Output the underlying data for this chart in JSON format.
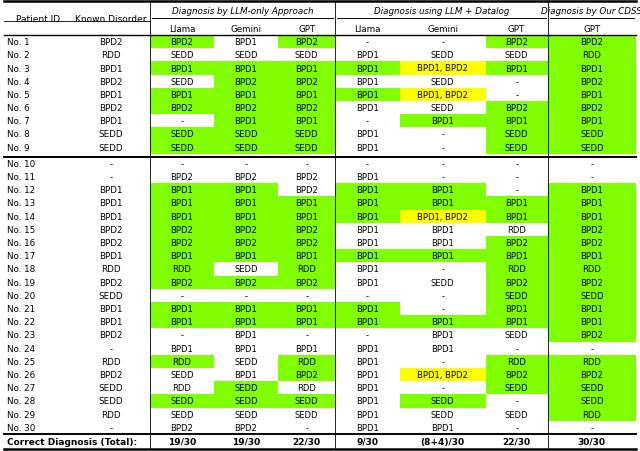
{
  "rows": [
    [
      "No. 1",
      "BPD2",
      "BPD2",
      "BPD1",
      "BPD2",
      "-",
      "-",
      "BPD2",
      "BPD2"
    ],
    [
      "No. 2",
      "RDD",
      "SEDD",
      "SEDD",
      "SEDD",
      "BPD1",
      "SEDD",
      "SEDD",
      "RDD"
    ],
    [
      "No. 3",
      "BPD1",
      "BPD1",
      "BPD1",
      "BPD1",
      "BPD1",
      "BPD1, BPD2",
      "BPD1",
      "BPD1"
    ],
    [
      "No. 4",
      "BPD2",
      "SEDD",
      "BPD2",
      "BPD2",
      "BPD1",
      "SEDD",
      "-",
      "BPD2"
    ],
    [
      "No. 5",
      "BPD1",
      "BPD1",
      "BPD1",
      "BPD1",
      "BPD1",
      "BPD1, BPD2",
      "-",
      "BPD1"
    ],
    [
      "No. 6",
      "BPD2",
      "BPD2",
      "BPD2",
      "BPD2",
      "BPD1",
      "SEDD",
      "BPD2",
      "BPD2"
    ],
    [
      "No. 7",
      "BPD1",
      "-",
      "BPD1",
      "BPD1",
      "-",
      "BPD1",
      "BPD1",
      "BPD1"
    ],
    [
      "No. 8",
      "SEDD",
      "SEDD",
      "SEDD",
      "SEDD",
      "BPD1",
      "-",
      "SEDD",
      "SEDD"
    ],
    [
      "No. 9",
      "SEDD",
      "SEDD",
      "SEDD",
      "SEDD",
      "BPD1",
      "-",
      "SEDD",
      "SEDD"
    ],
    [
      "No. 10",
      "-",
      "-",
      "-",
      "-",
      "-",
      "-",
      "-",
      "-"
    ],
    [
      "No. 11",
      "-",
      "BPD2",
      "BPD2",
      "BPD2",
      "BPD1",
      "-",
      "-",
      "-"
    ],
    [
      "No. 12",
      "BPD1",
      "BPD1",
      "BPD1",
      "BPD2",
      "BPD1",
      "BPD1",
      "-",
      "BPD1"
    ],
    [
      "No. 13",
      "BPD1",
      "BPD1",
      "BPD1",
      "BPD1",
      "BPD1",
      "BPD1",
      "BPD1",
      "BPD1"
    ],
    [
      "No. 14",
      "BPD1",
      "BPD1",
      "BPD1",
      "BPD1",
      "BPD1",
      "BPD1, BPD2",
      "BPD1",
      "BPD1"
    ],
    [
      "No. 15",
      "BPD2",
      "BPD2",
      "BPD2",
      "BPD2",
      "BPD1",
      "BPD1",
      "RDD",
      "BPD2"
    ],
    [
      "No. 16",
      "BPD2",
      "BPD2",
      "BPD2",
      "BPD2",
      "BPD1",
      "BPD1",
      "BPD2",
      "BPD2"
    ],
    [
      "No. 17",
      "BPD1",
      "BPD1",
      "BPD1",
      "BPD1",
      "BPD1",
      "BPD1",
      "BPD1",
      "BPD1"
    ],
    [
      "No. 18",
      "RDD",
      "RDD",
      "SEDD",
      "RDD",
      "BPD1",
      "-",
      "RDD",
      "RDD"
    ],
    [
      "No. 19",
      "BPD2",
      "BPD2",
      "BPD2",
      "BPD2",
      "BPD1",
      "SEDD",
      "BPD2",
      "BPD2"
    ],
    [
      "No. 20",
      "SEDD",
      "-",
      "-",
      "-",
      "-",
      "-",
      "SEDD",
      "SEDD"
    ],
    [
      "No. 21",
      "BPD1",
      "BPD1",
      "BPD1",
      "BPD1",
      "BPD1",
      "-",
      "BPD1",
      "BPD1"
    ],
    [
      "No. 22",
      "BPD1",
      "BPD1",
      "BPD1",
      "BPD1",
      "BPD1",
      "BPD1",
      "BPD1",
      "BPD1"
    ],
    [
      "No. 23",
      "BPD2",
      "-",
      "BPD1",
      "-",
      "-",
      "BPD1",
      "SEDD",
      "BPD2"
    ],
    [
      "No. 24",
      "-",
      "BPD1",
      "BPD1",
      "BPD1",
      "BPD1",
      "BPD1",
      "-",
      "-"
    ],
    [
      "No. 25",
      "RDD",
      "RDD",
      "SEDD",
      "RDD",
      "BPD1",
      "-",
      "RDD",
      "RDD"
    ],
    [
      "No. 26",
      "BPD2",
      "SEDD",
      "BPD1",
      "BPD2",
      "BPD1",
      "BPD1, BPD2",
      "BPD2",
      "BPD2"
    ],
    [
      "No. 27",
      "SEDD",
      "RDD",
      "SEDD",
      "RDD",
      "BPD1",
      "-",
      "SEDD",
      "SEDD"
    ],
    [
      "No. 28",
      "SEDD",
      "SEDD",
      "SEDD",
      "SEDD",
      "BPD1",
      "SEDD",
      "-",
      "SEDD"
    ],
    [
      "No. 29",
      "RDD",
      "SEDD",
      "SEDD",
      "SEDD",
      "BPD1",
      "SEDD",
      "SEDD",
      "RDD"
    ],
    [
      "No. 30",
      "-",
      "BPD2",
      "BPD2",
      "-",
      "BPD1",
      "BPD1",
      "-",
      "-"
    ]
  ],
  "footer_label": "Correct Diagnosis (Total):",
  "footer_vals": [
    "19/30",
    "19/30",
    "22/30",
    "9/30",
    "(8+4)/30",
    "22/30",
    "30/30"
  ],
  "group_headers": [
    "Diagnosis by LLM-only Approach",
    "Diagnosis using LLM + Datalog",
    "Diagnosis by Our CDSS"
  ],
  "col_labels": [
    "Llama",
    "Gemini",
    "GPT",
    "Llama",
    "Gemini",
    "GPT",
    "GPT"
  ],
  "fixed_headers": [
    "Patient ID",
    "Known Disorder"
  ],
  "separator_after_row": 9,
  "green": "#80FF00",
  "yellow": "#FFFF00",
  "white": "#FFFFFF"
}
